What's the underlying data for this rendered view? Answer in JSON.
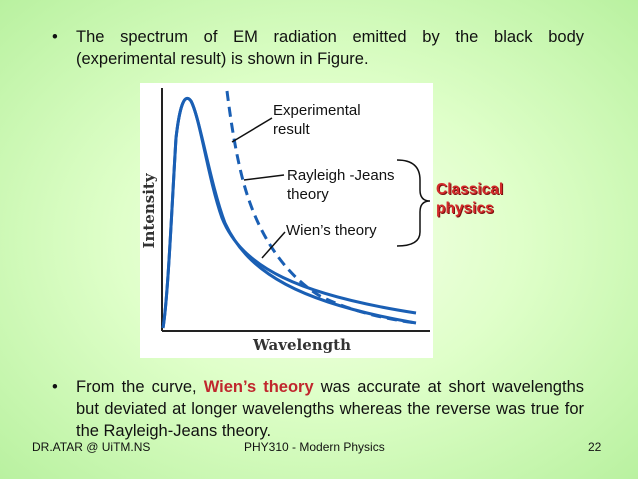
{
  "bullets": {
    "marker": "•",
    "first": "The spectrum of EM radiation emitted by the black body (experimental result) is shown in Figure.",
    "second_before": "From the curve, ",
    "second_highlight": "Wien’s theory",
    "second_after": " was accurate at short wavelengths but deviated at longer wavelengths whereas the reverse was true for the Rayleigh-Jeans theory."
  },
  "figure": {
    "x_axis_label": "Wavelength",
    "y_axis_label": "Intensity",
    "curves": [
      {
        "name": "Experimental result",
        "style": "solid"
      },
      {
        "name": "Rayleigh -Jeans theory",
        "style": "dashed"
      },
      {
        "name": "Wien’s theory",
        "style": "solid"
      }
    ]
  },
  "annotations": {
    "experimental_line1": "Experimental",
    "experimental_line2": "result",
    "rj_line1": "Rayleigh -Jeans",
    "rj_line2": "theory",
    "wien": "Wien’s theory",
    "classical_line1": "Classical",
    "classical_line2": "physics"
  },
  "footer": {
    "left": "DR.ATAR @ UiTM.NS",
    "middle": "PHY310 - Modern Physics",
    "page": "22"
  },
  "colors": {
    "curve": "#1a5fb4",
    "highlight": "#c0272d",
    "classical": "#d42b2b"
  }
}
